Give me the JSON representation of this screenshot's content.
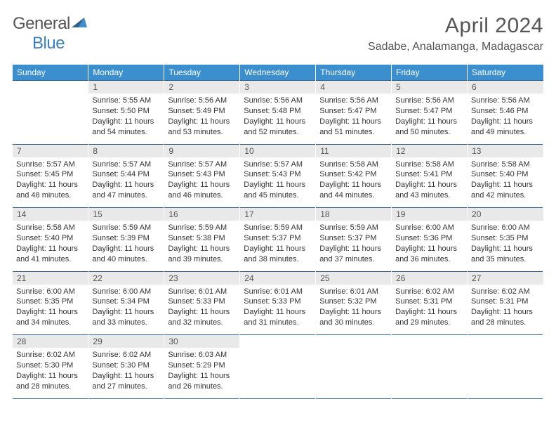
{
  "logo": {
    "word1": "General",
    "word2": "Blue"
  },
  "title": "April 2024",
  "location": "Sadabe, Analamanga, Madagascar",
  "colors": {
    "header_bg": "#3b8fce",
    "header_text": "#ffffff",
    "daynum_bg": "#e9e9e9",
    "daynum_text": "#555555",
    "divider": "#2d5f8f",
    "title_color": "#555555",
    "logo_general": "#555555",
    "logo_blue": "#3b7fbc",
    "body_text": "#333333",
    "background": "#ffffff"
  },
  "typography": {
    "title_fontsize": 30,
    "location_fontsize": 16,
    "dayheader_fontsize": 12,
    "daynum_fontsize": 12,
    "cell_fontsize": 11,
    "font_family": "Arial"
  },
  "day_headers": [
    "Sunday",
    "Monday",
    "Tuesday",
    "Wednesday",
    "Thursday",
    "Friday",
    "Saturday"
  ],
  "weeks": [
    {
      "days": [
        {
          "num": "",
          "lines": [
            "",
            "",
            "",
            ""
          ]
        },
        {
          "num": "1",
          "lines": [
            "Sunrise: 5:55 AM",
            "Sunset: 5:50 PM",
            "Daylight: 11 hours",
            "and 54 minutes."
          ]
        },
        {
          "num": "2",
          "lines": [
            "Sunrise: 5:56 AM",
            "Sunset: 5:49 PM",
            "Daylight: 11 hours",
            "and 53 minutes."
          ]
        },
        {
          "num": "3",
          "lines": [
            "Sunrise: 5:56 AM",
            "Sunset: 5:48 PM",
            "Daylight: 11 hours",
            "and 52 minutes."
          ]
        },
        {
          "num": "4",
          "lines": [
            "Sunrise: 5:56 AM",
            "Sunset: 5:47 PM",
            "Daylight: 11 hours",
            "and 51 minutes."
          ]
        },
        {
          "num": "5",
          "lines": [
            "Sunrise: 5:56 AM",
            "Sunset: 5:47 PM",
            "Daylight: 11 hours",
            "and 50 minutes."
          ]
        },
        {
          "num": "6",
          "lines": [
            "Sunrise: 5:56 AM",
            "Sunset: 5:46 PM",
            "Daylight: 11 hours",
            "and 49 minutes."
          ]
        }
      ]
    },
    {
      "days": [
        {
          "num": "7",
          "lines": [
            "Sunrise: 5:57 AM",
            "Sunset: 5:45 PM",
            "Daylight: 11 hours",
            "and 48 minutes."
          ]
        },
        {
          "num": "8",
          "lines": [
            "Sunrise: 5:57 AM",
            "Sunset: 5:44 PM",
            "Daylight: 11 hours",
            "and 47 minutes."
          ]
        },
        {
          "num": "9",
          "lines": [
            "Sunrise: 5:57 AM",
            "Sunset: 5:43 PM",
            "Daylight: 11 hours",
            "and 46 minutes."
          ]
        },
        {
          "num": "10",
          "lines": [
            "Sunrise: 5:57 AM",
            "Sunset: 5:43 PM",
            "Daylight: 11 hours",
            "and 45 minutes."
          ]
        },
        {
          "num": "11",
          "lines": [
            "Sunrise: 5:58 AM",
            "Sunset: 5:42 PM",
            "Daylight: 11 hours",
            "and 44 minutes."
          ]
        },
        {
          "num": "12",
          "lines": [
            "Sunrise: 5:58 AM",
            "Sunset: 5:41 PM",
            "Daylight: 11 hours",
            "and 43 minutes."
          ]
        },
        {
          "num": "13",
          "lines": [
            "Sunrise: 5:58 AM",
            "Sunset: 5:40 PM",
            "Daylight: 11 hours",
            "and 42 minutes."
          ]
        }
      ]
    },
    {
      "days": [
        {
          "num": "14",
          "lines": [
            "Sunrise: 5:58 AM",
            "Sunset: 5:40 PM",
            "Daylight: 11 hours",
            "and 41 minutes."
          ]
        },
        {
          "num": "15",
          "lines": [
            "Sunrise: 5:59 AM",
            "Sunset: 5:39 PM",
            "Daylight: 11 hours",
            "and 40 minutes."
          ]
        },
        {
          "num": "16",
          "lines": [
            "Sunrise: 5:59 AM",
            "Sunset: 5:38 PM",
            "Daylight: 11 hours",
            "and 39 minutes."
          ]
        },
        {
          "num": "17",
          "lines": [
            "Sunrise: 5:59 AM",
            "Sunset: 5:37 PM",
            "Daylight: 11 hours",
            "and 38 minutes."
          ]
        },
        {
          "num": "18",
          "lines": [
            "Sunrise: 5:59 AM",
            "Sunset: 5:37 PM",
            "Daylight: 11 hours",
            "and 37 minutes."
          ]
        },
        {
          "num": "19",
          "lines": [
            "Sunrise: 6:00 AM",
            "Sunset: 5:36 PM",
            "Daylight: 11 hours",
            "and 36 minutes."
          ]
        },
        {
          "num": "20",
          "lines": [
            "Sunrise: 6:00 AM",
            "Sunset: 5:35 PM",
            "Daylight: 11 hours",
            "and 35 minutes."
          ]
        }
      ]
    },
    {
      "days": [
        {
          "num": "21",
          "lines": [
            "Sunrise: 6:00 AM",
            "Sunset: 5:35 PM",
            "Daylight: 11 hours",
            "and 34 minutes."
          ]
        },
        {
          "num": "22",
          "lines": [
            "Sunrise: 6:00 AM",
            "Sunset: 5:34 PM",
            "Daylight: 11 hours",
            "and 33 minutes."
          ]
        },
        {
          "num": "23",
          "lines": [
            "Sunrise: 6:01 AM",
            "Sunset: 5:33 PM",
            "Daylight: 11 hours",
            "and 32 minutes."
          ]
        },
        {
          "num": "24",
          "lines": [
            "Sunrise: 6:01 AM",
            "Sunset: 5:33 PM",
            "Daylight: 11 hours",
            "and 31 minutes."
          ]
        },
        {
          "num": "25",
          "lines": [
            "Sunrise: 6:01 AM",
            "Sunset: 5:32 PM",
            "Daylight: 11 hours",
            "and 30 minutes."
          ]
        },
        {
          "num": "26",
          "lines": [
            "Sunrise: 6:02 AM",
            "Sunset: 5:31 PM",
            "Daylight: 11 hours",
            "and 29 minutes."
          ]
        },
        {
          "num": "27",
          "lines": [
            "Sunrise: 6:02 AM",
            "Sunset: 5:31 PM",
            "Daylight: 11 hours",
            "and 28 minutes."
          ]
        }
      ]
    },
    {
      "days": [
        {
          "num": "28",
          "lines": [
            "Sunrise: 6:02 AM",
            "Sunset: 5:30 PM",
            "Daylight: 11 hours",
            "and 28 minutes."
          ]
        },
        {
          "num": "29",
          "lines": [
            "Sunrise: 6:02 AM",
            "Sunset: 5:30 PM",
            "Daylight: 11 hours",
            "and 27 minutes."
          ]
        },
        {
          "num": "30",
          "lines": [
            "Sunrise: 6:03 AM",
            "Sunset: 5:29 PM",
            "Daylight: 11 hours",
            "and 26 minutes."
          ]
        },
        {
          "num": "",
          "lines": [
            "",
            "",
            "",
            ""
          ]
        },
        {
          "num": "",
          "lines": [
            "",
            "",
            "",
            ""
          ]
        },
        {
          "num": "",
          "lines": [
            "",
            "",
            "",
            ""
          ]
        },
        {
          "num": "",
          "lines": [
            "",
            "",
            "",
            ""
          ]
        }
      ]
    }
  ]
}
